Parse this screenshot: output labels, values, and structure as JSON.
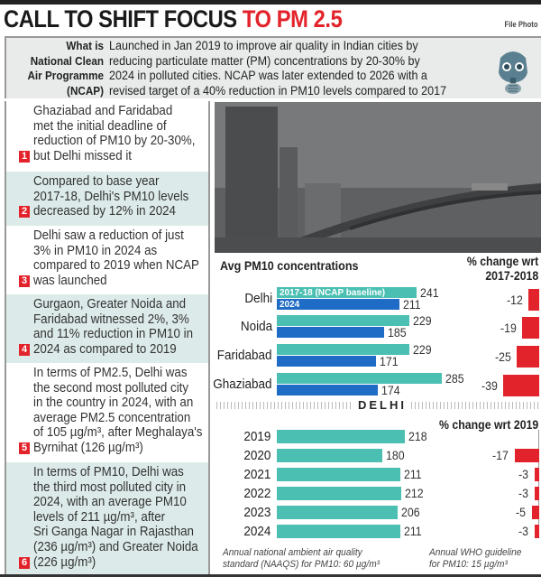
{
  "header": {
    "title_black": "CALL TO SHIFT FOCUS",
    "title_red": "TO PM 2.5",
    "credit": "File Photo"
  },
  "ncap": {
    "label": [
      "What is",
      "National Clean",
      "Air Programme",
      "(NCAP)"
    ],
    "text": [
      "Launched in Jan 2019 to improve air quality in Indian cities by",
      "reducing particulate matter (PM) concentrations by 20-30% by",
      "2024 in polluted cities. NCAP was later extended to 2026 with a",
      "revised target of a 40% reduction in PM10 levels compared to 2017"
    ],
    "icon": "gas-mask-icon"
  },
  "facts": [
    {
      "n": "1",
      "lines": [
        "Ghaziabad and Faridabad",
        "met the initial deadline of",
        "reduction of PM10 by 20-30%,",
        "but Delhi missed it"
      ]
    },
    {
      "n": "2",
      "lines": [
        "Compared to base year",
        "2017-18, Delhi's PM10 levels",
        "decreased by 12% in 2024"
      ]
    },
    {
      "n": "3",
      "lines": [
        "Delhi saw a reduction of just",
        "3% in PM10 in 2024 as",
        "compared to 2019 when NCAP",
        "was launched"
      ]
    },
    {
      "n": "4",
      "lines": [
        "Gurgaon, Greater Noida and",
        "Faridabad witnessed 2%, 3%",
        "and 11% reduction in PM10 in",
        "2024 as compared to 2019"
      ]
    },
    {
      "n": "5",
      "lines": [
        "In terms of PM2.5, Delhi was",
        "the second most polluted city",
        "in the country in 2024, with an",
        "average PM2.5 concentration",
        "of 105 µg/m³, after Meghalaya's",
        "Byrnihat (126 µg/m³)"
      ]
    },
    {
      "n": "6",
      "lines": [
        "In terms of PM10, Delhi was",
        "the third most polluted city in",
        "2024, with an average PM10",
        "levels of 211  µg/m³, after",
        "Sri Ganga Nagar in Rajasthan",
        "(236  µg/m³) and Greater Noida",
        "(226  µg/m³)"
      ]
    }
  ],
  "colors": {
    "teal": "#4cbfb3",
    "blue": "#1f6cc6",
    "red": "#e3232b"
  },
  "chart_data": [
    {
      "type": "bar",
      "orientation": "horizontal",
      "title": "Avg PM10 concentrations",
      "categories": [
        "Delhi",
        "Noida",
        "Faridabad",
        "Ghaziabad"
      ],
      "series": [
        {
          "name": "2017-18 (NCAP baseline)",
          "values": [
            241,
            229,
            229,
            285
          ],
          "color": "#4cbfb3"
        },
        {
          "name": "2024",
          "values": [
            211,
            185,
            171,
            174
          ],
          "color": "#1f6cc6"
        }
      ],
      "change_title": [
        "% change wrt",
        "2017-2018"
      ],
      "change_values": [
        -12,
        -19,
        -25,
        -39
      ]
    },
    {
      "type": "bar",
      "orientation": "horizontal",
      "title": "DELHI",
      "categories": [
        "2019",
        "2020",
        "2021",
        "2022",
        "2023",
        "2024"
      ],
      "values": [
        218,
        180,
        211,
        212,
        206,
        211
      ],
      "change_title": "% change wrt 2019",
      "change_values": [
        null,
        -17,
        -3,
        -3,
        -5,
        -3
      ],
      "notes": [
        [
          "Annual national ambient air quality",
          "standard (NAAQS) for PM10: 60 µg/m³"
        ],
        [
          "Annual WHO guideline",
          "for PM10: 15 µg/m³"
        ]
      ]
    }
  ]
}
